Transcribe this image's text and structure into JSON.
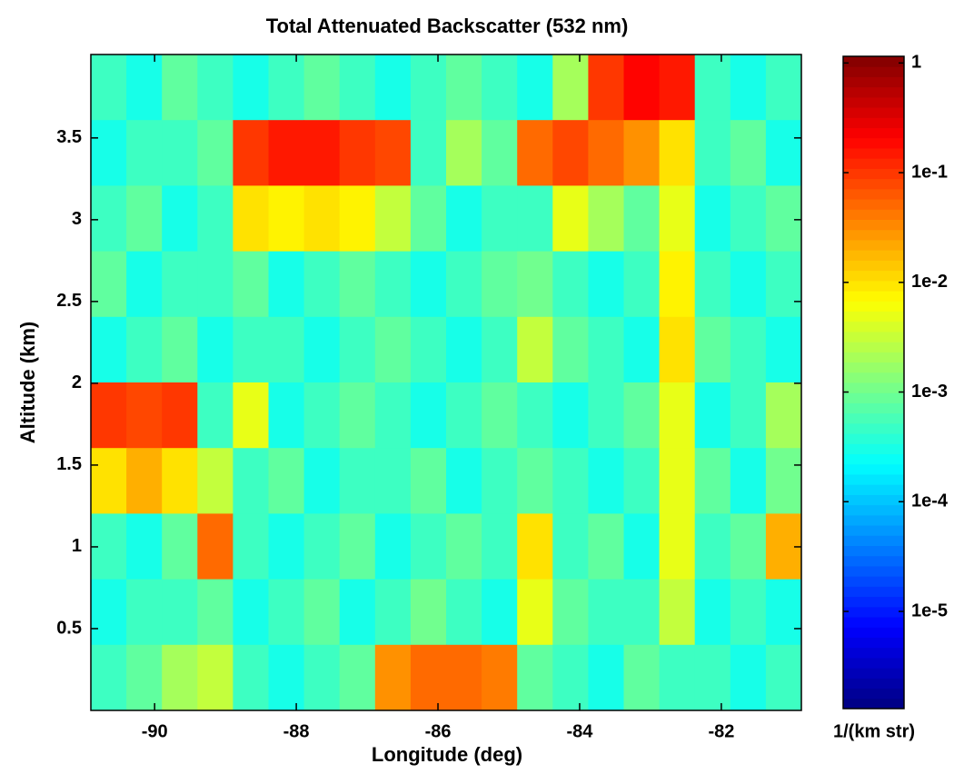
{
  "chart_data": {
    "type": "heatmap",
    "title": "Total Attenuated Backscatter (532 nm)",
    "x_label": "Longitude (deg)",
    "y_label": "Altitude (km)",
    "colorbar_label": "1/(km str)",
    "xlim": [
      -90.9,
      -80.87
    ],
    "xticks": [
      -90,
      -88,
      -86,
      -84,
      -82
    ],
    "ylim": [
      0,
      4.01
    ],
    "yticks": [
      0.5,
      1,
      1.5,
      2,
      2.5,
      3,
      3.5
    ],
    "clim": [
      1.3e-06,
      1.15
    ],
    "color_scale": "log",
    "cticks": [
      {
        "value": 1,
        "label": "1"
      },
      {
        "value": 0.1,
        "label": "1e-1"
      },
      {
        "value": 0.01,
        "label": "1e-2"
      },
      {
        "value": 0.001,
        "label": "1e-3"
      },
      {
        "value": 0.0001,
        "label": "1e-4"
      },
      {
        "value": 1e-05,
        "label": "1e-5"
      }
    ],
    "colormap": [
      "#000080",
      "#0000ff",
      "#0080ff",
      "#00ffff",
      "#80ff80",
      "#ffff00",
      "#ff8000",
      "#ff0000",
      "#800000"
    ],
    "z": [
      [
        0.0005,
        0.0003,
        0.0008,
        0.0005,
        0.0003,
        0.0005,
        0.0008,
        0.0005,
        0.0003,
        0.0005,
        0.0008,
        0.0005,
        0.0003,
        0.002,
        0.1,
        0.2,
        0.15,
        0.0005,
        0.0003,
        0.0005
      ],
      [
        0.0003,
        0.0005,
        0.0005,
        0.0008,
        0.1,
        0.15,
        0.15,
        0.1,
        0.08,
        0.0005,
        0.002,
        0.0008,
        0.05,
        0.08,
        0.05,
        0.03,
        0.01,
        0.0005,
        0.0008,
        0.0003
      ],
      [
        0.0005,
        0.0008,
        0.0003,
        0.0005,
        0.01,
        0.008,
        0.01,
        0.008,
        0.003,
        0.0008,
        0.0003,
        0.0005,
        0.0005,
        0.005,
        0.002,
        0.0008,
        0.005,
        0.0003,
        0.0005,
        0.0008
      ],
      [
        0.0008,
        0.0003,
        0.0005,
        0.0005,
        0.0008,
        0.0003,
        0.0005,
        0.0008,
        0.0005,
        0.0003,
        0.0005,
        0.0008,
        0.001,
        0.0005,
        0.0003,
        0.0005,
        0.008,
        0.0005,
        0.0003,
        0.0005
      ],
      [
        0.0003,
        0.0005,
        0.0008,
        0.0003,
        0.0005,
        0.0005,
        0.0003,
        0.0005,
        0.0008,
        0.0005,
        0.0003,
        0.0005,
        0.003,
        0.0008,
        0.0005,
        0.0003,
        0.01,
        0.0008,
        0.0005,
        0.0003
      ],
      [
        0.1,
        0.08,
        0.1,
        0.0005,
        0.005,
        0.0003,
        0.0005,
        0.0008,
        0.0005,
        0.0003,
        0.0005,
        0.0008,
        0.0005,
        0.0003,
        0.0005,
        0.0008,
        0.005,
        0.0003,
        0.0005,
        0.002
      ],
      [
        0.01,
        0.02,
        0.01,
        0.003,
        0.0005,
        0.0008,
        0.0003,
        0.0005,
        0.0005,
        0.0008,
        0.0003,
        0.0005,
        0.0008,
        0.0005,
        0.0003,
        0.0005,
        0.005,
        0.0008,
        0.0003,
        0.001
      ],
      [
        0.0005,
        0.0003,
        0.0008,
        0.05,
        0.0005,
        0.0003,
        0.0005,
        0.0008,
        0.0003,
        0.0005,
        0.0008,
        0.0005,
        0.01,
        0.0005,
        0.0008,
        0.0003,
        0.005,
        0.0005,
        0.0008,
        0.02
      ],
      [
        0.0003,
        0.0005,
        0.0005,
        0.0008,
        0.0003,
        0.0005,
        0.0008,
        0.0003,
        0.0005,
        0.001,
        0.0005,
        0.0003,
        0.005,
        0.0008,
        0.0005,
        0.0005,
        0.003,
        0.0003,
        0.0005,
        0.0003
      ],
      [
        0.0005,
        0.0008,
        0.002,
        0.003,
        0.0005,
        0.0003,
        0.0005,
        0.0008,
        0.03,
        0.05,
        0.05,
        0.04,
        0.0008,
        0.0005,
        0.0003,
        0.0008,
        0.0005,
        0.0005,
        0.0003,
        0.0005
      ]
    ]
  }
}
